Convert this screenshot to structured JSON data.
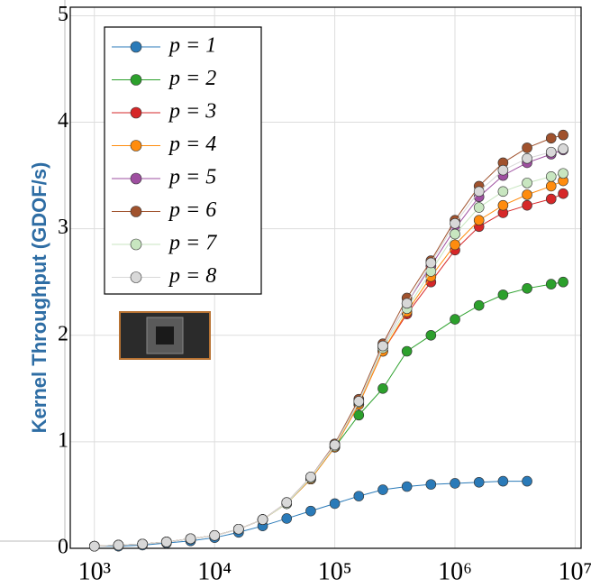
{
  "chart_data": {
    "type": "line",
    "y_label": "Kernel Throughput (GDOF/s)",
    "x": [
      1000,
      1585,
      2512,
      3981,
      6310,
      10000,
      15849,
      25119,
      39811,
      63096,
      100000,
      158489,
      251189,
      398107,
      630957,
      1000000,
      1584893,
      2511886,
      3981072,
      6309573,
      7943282
    ],
    "series": [
      {
        "name": "p = 1",
        "color": "#2a7ab8",
        "values": [
          0.02,
          0.02,
          0.03,
          0.05,
          0.07,
          0.1,
          0.15,
          0.21,
          0.28,
          0.35,
          0.42,
          0.49,
          0.55,
          0.58,
          0.6,
          0.61,
          0.62,
          0.63,
          0.63,
          null,
          null
        ]
      },
      {
        "name": "p = 2",
        "color": "#2ca02c",
        "values": [
          0.02,
          0.03,
          0.04,
          0.06,
          0.09,
          0.12,
          0.18,
          0.27,
          0.42,
          0.65,
          0.95,
          1.25,
          1.5,
          1.85,
          2.0,
          2.15,
          2.28,
          2.38,
          2.44,
          2.48,
          2.5
        ]
      },
      {
        "name": "p = 3",
        "color": "#d62728",
        "values": [
          0.02,
          0.03,
          0.04,
          0.06,
          0.09,
          0.12,
          0.18,
          0.27,
          0.42,
          0.65,
          0.95,
          1.35,
          1.85,
          2.2,
          2.5,
          2.8,
          3.02,
          3.15,
          3.22,
          3.28,
          3.33
        ]
      },
      {
        "name": "p = 4",
        "color": "#ff8c0e",
        "values": [
          0.02,
          0.03,
          0.04,
          0.06,
          0.09,
          0.12,
          0.18,
          0.27,
          0.42,
          0.65,
          0.95,
          1.35,
          1.85,
          2.22,
          2.55,
          2.85,
          3.08,
          3.22,
          3.32,
          3.4,
          3.45
        ]
      },
      {
        "name": "p = 5",
        "color": "#9e4fa0",
        "values": [
          0.02,
          0.03,
          0.04,
          0.06,
          0.09,
          0.12,
          0.18,
          0.27,
          0.43,
          0.67,
          0.98,
          1.38,
          1.9,
          2.3,
          2.65,
          3.0,
          3.3,
          3.5,
          3.62,
          3.7,
          3.74
        ]
      },
      {
        "name": "p = 6",
        "color": "#a0522d",
        "values": [
          0.02,
          0.03,
          0.04,
          0.06,
          0.09,
          0.12,
          0.18,
          0.27,
          0.43,
          0.67,
          0.98,
          1.4,
          1.92,
          2.35,
          2.7,
          3.08,
          3.4,
          3.62,
          3.76,
          3.85,
          3.88
        ]
      },
      {
        "name": "p = 7",
        "color": "#c8e6c0",
        "values": [
          0.02,
          0.03,
          0.04,
          0.06,
          0.09,
          0.12,
          0.18,
          0.27,
          0.42,
          0.66,
          0.96,
          1.37,
          1.88,
          2.25,
          2.6,
          2.95,
          3.2,
          3.35,
          3.43,
          3.49,
          3.52
        ]
      },
      {
        "name": "p = 8",
        "color": "#d8d8d8",
        "values": [
          0.02,
          0.03,
          0.04,
          0.06,
          0.09,
          0.12,
          0.18,
          0.27,
          0.43,
          0.67,
          0.97,
          1.38,
          1.9,
          2.3,
          2.68,
          3.05,
          3.35,
          3.55,
          3.66,
          3.72,
          3.75
        ]
      }
    ],
    "xlim": [
      630,
      11200000
    ],
    "ylim": [
      0,
      5.08
    ],
    "log_x": true,
    "grid": true,
    "legend": "upper left",
    "xticks": [
      {
        "value": 1000,
        "label": "10³"
      },
      {
        "value": 10000,
        "label": "10⁴"
      },
      {
        "value": 100000,
        "label": "10⁵"
      },
      {
        "value": 1000000,
        "label": "10⁶"
      },
      {
        "value": 10000000,
        "label": "10⁷"
      }
    ],
    "yticks": [
      0,
      1,
      2,
      3,
      4,
      5
    ]
  }
}
